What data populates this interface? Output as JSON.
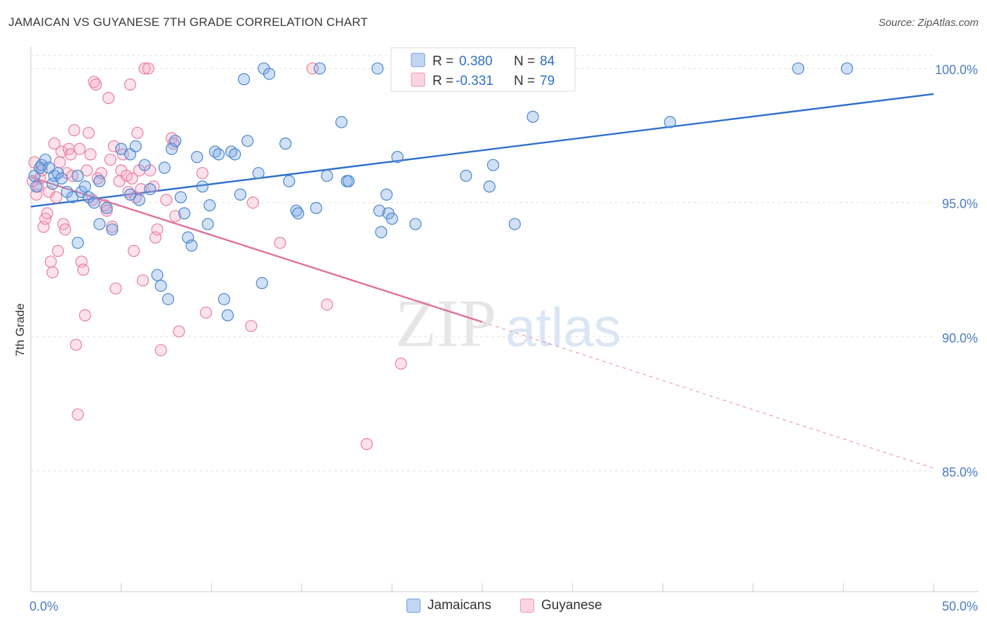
{
  "title": "JAMAICAN VS GUYANESE 7TH GRADE CORRELATION CHART",
  "source": "Source: ZipAtlas.com",
  "watermark": {
    "part1": "ZIP",
    "part2": "atlas"
  },
  "colors": {
    "blue": "#4a86d0",
    "blue_fill": "rgba(120,165,230,0.35)",
    "blue_line": "#2e6fcc",
    "pink": "#e87fa3",
    "pink_fill": "rgba(245,160,190,0.30)",
    "pink_line": "#e0709a",
    "tick_label": "#4a7cc4",
    "grid": "#e2e2e2"
  },
  "legend_stats": [
    {
      "r_label": "R =",
      "r_value": "0.380",
      "n_label": "N =",
      "n_value": "84",
      "series": "Jamaicans"
    },
    {
      "r_label": "R =",
      "r_value": "-0.331",
      "n_label": "N =",
      "n_value": "79",
      "series": "Guyanese"
    }
  ],
  "chart_data": {
    "type": "scatter",
    "title": "JAMAICAN VS GUYANESE 7TH GRADE CORRELATION CHART",
    "xlabel": "",
    "ylabel": "7th Grade",
    "xlim": [
      0,
      50
    ],
    "ylim": [
      80.5,
      100.8
    ],
    "x_tick_labels": [
      {
        "value": 0,
        "label": "0.0%"
      },
      {
        "value": 50,
        "label": "50.0%"
      }
    ],
    "y_tick_labels": [
      {
        "value": 100,
        "label": "100.0%"
      },
      {
        "value": 95,
        "label": "95.0%"
      },
      {
        "value": 90,
        "label": "90.0%"
      },
      {
        "value": 85,
        "label": "85.0%"
      }
    ],
    "grid": true,
    "legend_position": "bottom-center",
    "series": [
      {
        "name": "Jamaicans",
        "color": "#4a86d0",
        "trend": {
          "x0": 0,
          "y0": 94.85,
          "x1": 50,
          "y1": 99.05,
          "dashed_from": null
        },
        "points": [
          [
            0.2,
            96.0
          ],
          [
            0.3,
            95.6
          ],
          [
            0.5,
            96.3
          ],
          [
            0.6,
            96.4
          ],
          [
            0.8,
            96.6
          ],
          [
            1.0,
            96.3
          ],
          [
            1.2,
            95.7
          ],
          [
            1.3,
            96.0
          ],
          [
            1.5,
            96.1
          ],
          [
            1.7,
            95.9
          ],
          [
            2.0,
            95.4
          ],
          [
            2.3,
            95.2
          ],
          [
            2.6,
            96.0
          ],
          [
            2.8,
            95.4
          ],
          [
            3.0,
            95.6
          ],
          [
            3.2,
            95.2
          ],
          [
            3.5,
            95.0
          ],
          [
            3.8,
            95.8
          ],
          [
            4.2,
            94.8
          ],
          [
            2.6,
            93.5
          ],
          [
            3.8,
            94.2
          ],
          [
            4.5,
            94.0
          ],
          [
            5.0,
            97.0
          ],
          [
            5.5,
            96.8
          ],
          [
            5.8,
            97.1
          ],
          [
            6.0,
            95.1
          ],
          [
            6.3,
            96.4
          ],
          [
            5.5,
            95.3
          ],
          [
            6.6,
            95.5
          ],
          [
            7.0,
            92.3
          ],
          [
            7.2,
            91.9
          ],
          [
            7.4,
            96.3
          ],
          [
            7.6,
            91.4
          ],
          [
            7.8,
            97.0
          ],
          [
            8.0,
            97.3
          ],
          [
            8.3,
            95.2
          ],
          [
            8.5,
            94.6
          ],
          [
            8.7,
            93.7
          ],
          [
            8.9,
            93.4
          ],
          [
            9.2,
            96.7
          ],
          [
            9.5,
            95.6
          ],
          [
            9.8,
            94.2
          ],
          [
            9.9,
            94.9
          ],
          [
            10.2,
            96.9
          ],
          [
            10.4,
            96.8
          ],
          [
            10.7,
            91.4
          ],
          [
            10.9,
            90.8
          ],
          [
            11.1,
            96.9
          ],
          [
            11.3,
            96.8
          ],
          [
            11.6,
            95.3
          ],
          [
            11.8,
            99.6
          ],
          [
            12.0,
            97.3
          ],
          [
            12.6,
            96.1
          ],
          [
            12.8,
            92.0
          ],
          [
            12.9,
            100.0
          ],
          [
            13.2,
            99.8
          ],
          [
            14.1,
            97.2
          ],
          [
            14.3,
            95.8
          ],
          [
            14.7,
            94.7
          ],
          [
            14.8,
            94.6
          ],
          [
            15.8,
            94.8
          ],
          [
            16.0,
            100.0
          ],
          [
            16.4,
            96.0
          ],
          [
            17.2,
            98.0
          ],
          [
            17.5,
            95.8
          ],
          [
            17.6,
            95.8
          ],
          [
            19.2,
            100.0
          ],
          [
            19.3,
            94.7
          ],
          [
            19.4,
            93.9
          ],
          [
            19.7,
            95.3
          ],
          [
            19.8,
            94.6
          ],
          [
            20.0,
            94.4
          ],
          [
            20.3,
            96.7
          ],
          [
            21.3,
            94.2
          ],
          [
            24.1,
            96.0
          ],
          [
            25.4,
            95.6
          ],
          [
            25.6,
            96.4
          ],
          [
            26.2,
            100.3
          ],
          [
            26.8,
            100.0
          ],
          [
            26.8,
            94.2
          ],
          [
            27.8,
            98.2
          ],
          [
            35.4,
            98.0
          ],
          [
            42.5,
            100.0
          ],
          [
            45.2,
            100.0
          ]
        ]
      },
      {
        "name": "Guyanese",
        "color": "#e87fa3",
        "trend": {
          "x0": 0,
          "y0": 95.95,
          "x1": 25.0,
          "y1": 90.55,
          "dashed_to_x": 50,
          "dashed_to_y": 85.1
        },
        "points": [
          [
            0.1,
            95.8
          ],
          [
            0.2,
            96.5
          ],
          [
            0.3,
            95.3
          ],
          [
            0.4,
            95.6
          ],
          [
            0.5,
            95.9
          ],
          [
            0.6,
            96.2
          ],
          [
            0.7,
            94.1
          ],
          [
            0.8,
            94.4
          ],
          [
            0.9,
            94.6
          ],
          [
            1.0,
            95.4
          ],
          [
            1.1,
            92.8
          ],
          [
            1.2,
            92.4
          ],
          [
            1.3,
            97.2
          ],
          [
            1.4,
            95.2
          ],
          [
            1.5,
            93.2
          ],
          [
            1.6,
            96.5
          ],
          [
            1.7,
            96.9
          ],
          [
            1.8,
            94.2
          ],
          [
            1.9,
            94.0
          ],
          [
            2.0,
            96.1
          ],
          [
            2.1,
            97.0
          ],
          [
            2.2,
            96.8
          ],
          [
            2.3,
            96.0
          ],
          [
            2.4,
            97.7
          ],
          [
            2.5,
            89.7
          ],
          [
            2.6,
            87.1
          ],
          [
            2.7,
            97.0
          ],
          [
            2.8,
            92.8
          ],
          [
            2.9,
            92.5
          ],
          [
            3.0,
            90.8
          ],
          [
            3.1,
            96.2
          ],
          [
            3.2,
            97.6
          ],
          [
            3.3,
            96.8
          ],
          [
            3.4,
            95.1
          ],
          [
            3.5,
            99.5
          ],
          [
            3.6,
            99.4
          ],
          [
            3.7,
            95.9
          ],
          [
            3.9,
            96.1
          ],
          [
            4.1,
            94.9
          ],
          [
            4.2,
            94.7
          ],
          [
            4.3,
            98.9
          ],
          [
            4.4,
            96.6
          ],
          [
            4.5,
            94.1
          ],
          [
            4.6,
            97.1
          ],
          [
            4.7,
            91.8
          ],
          [
            4.9,
            95.8
          ],
          [
            5.0,
            96.2
          ],
          [
            5.1,
            96.8
          ],
          [
            5.3,
            96.0
          ],
          [
            5.4,
            95.4
          ],
          [
            5.5,
            99.4
          ],
          [
            5.6,
            95.9
          ],
          [
            5.7,
            93.2
          ],
          [
            5.8,
            95.2
          ],
          [
            5.9,
            97.6
          ],
          [
            6.0,
            96.2
          ],
          [
            6.1,
            95.5
          ],
          [
            6.2,
            92.1
          ],
          [
            6.3,
            100.0
          ],
          [
            6.5,
            100.0
          ],
          [
            6.6,
            96.2
          ],
          [
            6.8,
            95.6
          ],
          [
            6.9,
            93.7
          ],
          [
            7.0,
            94.0
          ],
          [
            7.2,
            89.5
          ],
          [
            7.5,
            95.1
          ],
          [
            7.8,
            97.4
          ],
          [
            7.9,
            97.2
          ],
          [
            8.0,
            94.5
          ],
          [
            8.2,
            90.2
          ],
          [
            9.5,
            96.1
          ],
          [
            9.7,
            90.9
          ],
          [
            12.2,
            90.4
          ],
          [
            12.3,
            95.0
          ],
          [
            13.8,
            93.5
          ],
          [
            15.6,
            100.0
          ],
          [
            16.4,
            91.2
          ],
          [
            18.6,
            86.0
          ],
          [
            20.5,
            89.0
          ]
        ]
      }
    ]
  }
}
